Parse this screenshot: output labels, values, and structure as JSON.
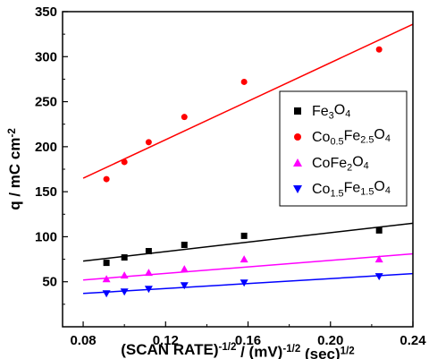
{
  "chart_data": {
    "type": "scatter",
    "xlabel": {
      "parts": [
        {
          "t": "(SCAN RATE)",
          "s": "n"
        },
        {
          "t": "-1/2",
          "s": "sup"
        },
        {
          "t": " / (mV)",
          "s": "n"
        },
        {
          "t": "-1/2",
          "s": "sup"
        },
        {
          "t": " (sec)",
          "s": "n"
        },
        {
          "t": "1/2",
          "s": "sup"
        }
      ]
    },
    "ylabel": {
      "parts": [
        {
          "t": "q / mC cm",
          "s": "n"
        },
        {
          "t": "-2",
          "s": "sup"
        }
      ]
    },
    "xlim": [
      0.07,
      0.24
    ],
    "ylim": [
      0,
      350
    ],
    "xticks": [
      0.08,
      0.12,
      0.16,
      0.2,
      0.24
    ],
    "xtick_labels": [
      "0.08",
      "0.12",
      "0.16",
      "0.20",
      "0.24"
    ],
    "yticks": [
      50,
      100,
      150,
      200,
      250,
      300,
      350
    ],
    "ytick_labels": [
      "50",
      "100",
      "150",
      "200",
      "250",
      "300",
      "350"
    ],
    "legend_position": "right",
    "series": [
      {
        "legend": [
          {
            "t": "Fe",
            "s": "n"
          },
          {
            "t": "3",
            "s": "sub"
          },
          {
            "t": "O",
            "s": "n"
          },
          {
            "t": "4",
            "s": "sub"
          }
        ],
        "marker": "square",
        "color": "#000000",
        "x": [
          0.0913,
          0.1,
          0.1118,
          0.1291,
          0.1581,
          0.2236
        ],
        "y": [
          71,
          77,
          84,
          91,
          101,
          107
        ],
        "fit": {
          "x": [
            0.08,
            0.24
          ],
          "y": [
            73,
            115
          ]
        }
      },
      {
        "legend": [
          {
            "t": "Co",
            "s": "n"
          },
          {
            "t": "0.5",
            "s": "sub"
          },
          {
            "t": "Fe",
            "s": "n"
          },
          {
            "t": "2.5",
            "s": "sub"
          },
          {
            "t": "O",
            "s": "n"
          },
          {
            "t": "4",
            "s": "sub"
          }
        ],
        "marker": "circle",
        "color": "#ff0000",
        "x": [
          0.0913,
          0.1,
          0.1118,
          0.1291,
          0.1581,
          0.2236
        ],
        "y": [
          164,
          183,
          205,
          233,
          272,
          308
        ],
        "fit": {
          "x": [
            0.08,
            0.24
          ],
          "y": [
            165,
            336
          ]
        }
      },
      {
        "legend": [
          {
            "t": "CoFe",
            "s": "n"
          },
          {
            "t": "2",
            "s": "sub"
          },
          {
            "t": "O",
            "s": "n"
          },
          {
            "t": "4",
            "s": "sub"
          }
        ],
        "marker": "triangle-up",
        "color": "#ff00ff",
        "x": [
          0.0913,
          0.1,
          0.1118,
          0.1291,
          0.1581,
          0.2236
        ],
        "y": [
          53,
          57,
          60,
          64,
          75,
          75
        ],
        "fit": {
          "x": [
            0.08,
            0.24
          ],
          "y": [
            52,
            81
          ]
        }
      },
      {
        "legend": [
          {
            "t": "Co",
            "s": "n"
          },
          {
            "t": "1.5",
            "s": "sub"
          },
          {
            "t": "Fe",
            "s": "n"
          },
          {
            "t": "1.5",
            "s": "sub"
          },
          {
            "t": "O",
            "s": "n"
          },
          {
            "t": "4",
            "s": "sub"
          }
        ],
        "marker": "triangle-down",
        "color": "#0000ff",
        "x": [
          0.0913,
          0.1,
          0.1118,
          0.1291,
          0.1581,
          0.2236
        ],
        "y": [
          37,
          39,
          42,
          46,
          49,
          56
        ],
        "fit": {
          "x": [
            0.08,
            0.24
          ],
          "y": [
            37,
            59
          ]
        }
      }
    ]
  }
}
